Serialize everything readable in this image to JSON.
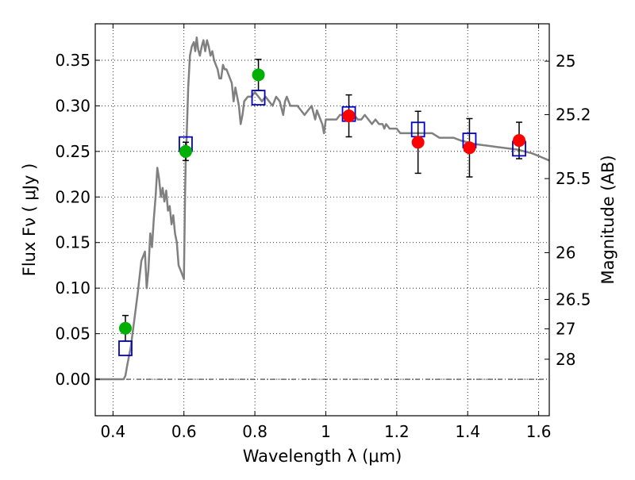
{
  "chart_data": {
    "type": "scatter",
    "xlabel": "Wavelength  λ (μm)",
    "ylabel": "Flux  Fν  ( μJy )",
    "y2label": "Magnitude (AB)",
    "xlim": [
      0.35,
      1.63
    ],
    "ylim": [
      -0.04,
      0.39
    ],
    "xticks": [
      {
        "value": 0.4,
        "label": "0.4"
      },
      {
        "value": 0.6,
        "label": "0.6"
      },
      {
        "value": 0.8,
        "label": "0.8"
      },
      {
        "value": 1.0,
        "label": "1"
      },
      {
        "value": 1.2,
        "label": "1.2"
      },
      {
        "value": 1.4,
        "label": "1.4"
      },
      {
        "value": 1.6,
        "label": "1.6"
      }
    ],
    "yticks": [
      {
        "value": 0.0,
        "label": "0.00"
      },
      {
        "value": 0.05,
        "label": "0.05"
      },
      {
        "value": 0.1,
        "label": "0.10"
      },
      {
        "value": 0.15,
        "label": "0.15"
      },
      {
        "value": 0.2,
        "label": "0.20"
      },
      {
        "value": 0.25,
        "label": "0.25"
      },
      {
        "value": 0.3,
        "label": "0.30"
      },
      {
        "value": 0.35,
        "label": "0.35"
      }
    ],
    "mag_ticks": [
      {
        "label": "25",
        "value": 0.349
      },
      {
        "label": "25.2",
        "value": 0.2903
      },
      {
        "label": "25.5",
        "value": 0.2202
      },
      {
        "label": "26",
        "value": 0.1389
      },
      {
        "label": "26.5",
        "value": 0.0876
      },
      {
        "label": "27",
        "value": 0.0553
      },
      {
        "label": "28",
        "value": 0.022
      }
    ],
    "grid": true,
    "zero_line": true,
    "model_sed": {
      "color": "#808080",
      "points": [
        [
          0.35,
          0.0
        ],
        [
          0.43,
          0.0
        ],
        [
          0.435,
          0.004
        ],
        [
          0.44,
          0.015
        ],
        [
          0.45,
          0.035
        ],
        [
          0.46,
          0.065
        ],
        [
          0.47,
          0.095
        ],
        [
          0.48,
          0.13
        ],
        [
          0.49,
          0.14
        ],
        [
          0.495,
          0.1
        ],
        [
          0.5,
          0.12
        ],
        [
          0.505,
          0.16
        ],
        [
          0.51,
          0.145
        ],
        [
          0.515,
          0.175
        ],
        [
          0.52,
          0.2
        ],
        [
          0.525,
          0.232
        ],
        [
          0.53,
          0.22
        ],
        [
          0.535,
          0.2
        ],
        [
          0.54,
          0.21
        ],
        [
          0.545,
          0.195
        ],
        [
          0.55,
          0.207
        ],
        [
          0.555,
          0.185
        ],
        [
          0.56,
          0.19
        ],
        [
          0.565,
          0.17
        ],
        [
          0.57,
          0.18
        ],
        [
          0.575,
          0.16
        ],
        [
          0.58,
          0.15
        ],
        [
          0.585,
          0.125
        ],
        [
          0.59,
          0.12
        ],
        [
          0.595,
          0.115
        ],
        [
          0.6,
          0.11
        ],
        [
          0.603,
          0.2
        ],
        [
          0.605,
          0.24
        ],
        [
          0.608,
          0.27
        ],
        [
          0.612,
          0.32
        ],
        [
          0.617,
          0.355
        ],
        [
          0.622,
          0.365
        ],
        [
          0.628,
          0.37
        ],
        [
          0.632,
          0.36
        ],
        [
          0.636,
          0.375
        ],
        [
          0.64,
          0.362
        ],
        [
          0.645,
          0.355
        ],
        [
          0.65,
          0.365
        ],
        [
          0.655,
          0.372
        ],
        [
          0.66,
          0.36
        ],
        [
          0.665,
          0.372
        ],
        [
          0.67,
          0.365
        ],
        [
          0.675,
          0.355
        ],
        [
          0.68,
          0.36
        ],
        [
          0.685,
          0.35
        ],
        [
          0.69,
          0.345
        ],
        [
          0.695,
          0.34
        ],
        [
          0.7,
          0.33
        ],
        [
          0.705,
          0.33
        ],
        [
          0.71,
          0.345
        ],
        [
          0.715,
          0.34
        ],
        [
          0.72,
          0.34
        ],
        [
          0.725,
          0.335
        ],
        [
          0.73,
          0.33
        ],
        [
          0.735,
          0.325
        ],
        [
          0.74,
          0.305
        ],
        [
          0.745,
          0.32
        ],
        [
          0.75,
          0.31
        ],
        [
          0.755,
          0.3
        ],
        [
          0.76,
          0.28
        ],
        [
          0.765,
          0.29
        ],
        [
          0.77,
          0.305
        ],
        [
          0.78,
          0.31
        ],
        [
          0.79,
          0.31
        ],
        [
          0.8,
          0.315
        ],
        [
          0.81,
          0.31
        ],
        [
          0.82,
          0.305
        ],
        [
          0.83,
          0.31
        ],
        [
          0.84,
          0.305
        ],
        [
          0.85,
          0.3
        ],
        [
          0.86,
          0.31
        ],
        [
          0.87,
          0.305
        ],
        [
          0.88,
          0.29
        ],
        [
          0.885,
          0.305
        ],
        [
          0.89,
          0.31
        ],
        [
          0.9,
          0.3
        ],
        [
          0.91,
          0.3
        ],
        [
          0.92,
          0.3
        ],
        [
          0.93,
          0.295
        ],
        [
          0.94,
          0.29
        ],
        [
          0.95,
          0.295
        ],
        [
          0.96,
          0.3
        ],
        [
          0.97,
          0.285
        ],
        [
          0.975,
          0.295
        ],
        [
          0.98,
          0.29
        ],
        [
          0.99,
          0.28
        ],
        [
          0.995,
          0.27
        ],
        [
          1.0,
          0.285
        ],
        [
          1.01,
          0.285
        ],
        [
          1.02,
          0.285
        ],
        [
          1.03,
          0.285
        ],
        [
          1.04,
          0.29
        ],
        [
          1.05,
          0.29
        ],
        [
          1.06,
          0.29
        ],
        [
          1.07,
          0.29
        ],
        [
          1.08,
          0.29
        ],
        [
          1.09,
          0.285
        ],
        [
          1.1,
          0.285
        ],
        [
          1.11,
          0.29
        ],
        [
          1.12,
          0.285
        ],
        [
          1.13,
          0.28
        ],
        [
          1.14,
          0.285
        ],
        [
          1.15,
          0.28
        ],
        [
          1.16,
          0.28
        ],
        [
          1.165,
          0.275
        ],
        [
          1.17,
          0.28
        ],
        [
          1.18,
          0.275
        ],
        [
          1.19,
          0.275
        ],
        [
          1.2,
          0.275
        ],
        [
          1.21,
          0.27
        ],
        [
          1.22,
          0.27
        ],
        [
          1.24,
          0.27
        ],
        [
          1.26,
          0.27
        ],
        [
          1.28,
          0.27
        ],
        [
          1.3,
          0.27
        ],
        [
          1.32,
          0.265
        ],
        [
          1.34,
          0.265
        ],
        [
          1.36,
          0.265
        ],
        [
          1.38,
          0.262
        ],
        [
          1.4,
          0.26
        ],
        [
          1.42,
          0.258
        ],
        [
          1.44,
          0.257
        ],
        [
          1.46,
          0.256
        ],
        [
          1.48,
          0.255
        ],
        [
          1.5,
          0.254
        ],
        [
          1.52,
          0.253
        ],
        [
          1.54,
          0.252
        ],
        [
          1.56,
          0.25
        ],
        [
          1.58,
          0.248
        ],
        [
          1.6,
          0.245
        ],
        [
          1.63,
          0.24
        ]
      ]
    },
    "model_boxes": [
      {
        "x": 0.435,
        "y": 0.034
      },
      {
        "x": 0.605,
        "y": 0.258
      },
      {
        "x": 0.81,
        "y": 0.309
      },
      {
        "x": 1.065,
        "y": 0.291
      },
      {
        "x": 1.26,
        "y": 0.274
      },
      {
        "x": 1.405,
        "y": 0.262
      },
      {
        "x": 1.545,
        "y": 0.253
      }
    ],
    "observed_green": [
      {
        "x": 0.435,
        "y": 0.056,
        "err": 0.014
      },
      {
        "x": 0.605,
        "y": 0.25,
        "err": 0.01
      },
      {
        "x": 0.81,
        "y": 0.334,
        "err": 0.017
      }
    ],
    "observed_red": [
      {
        "x": 1.065,
        "y": 0.289,
        "err": 0.023
      },
      {
        "x": 1.26,
        "y": 0.26,
        "err": 0.034
      },
      {
        "x": 1.405,
        "y": 0.254,
        "err": 0.032
      },
      {
        "x": 1.545,
        "y": 0.262,
        "err": 0.02
      }
    ],
    "colors": {
      "green": "#00b000",
      "red": "#ff0000",
      "box": "#0000cc",
      "errorbar": "#000000"
    }
  }
}
